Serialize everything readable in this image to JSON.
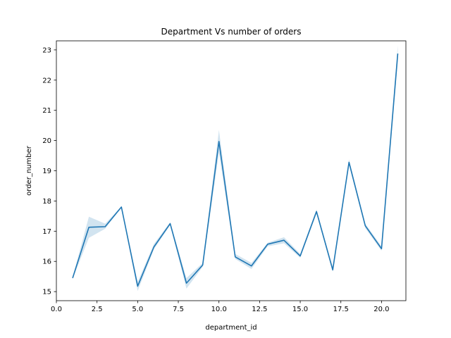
{
  "chart_data": {
    "type": "line",
    "title": "Department Vs number of orders",
    "xlabel": "department_id",
    "ylabel": "order_number",
    "xlim": [
      0,
      21.5
    ],
    "ylim": [
      14.7,
      23.3
    ],
    "x_ticks": [
      0,
      2.5,
      5,
      7.5,
      10,
      12.5,
      15,
      17.5,
      20
    ],
    "x_tick_labels": [
      "0.0",
      "2.5",
      "5.0",
      "7.5",
      "10.0",
      "12.5",
      "15.0",
      "17.5",
      "20.0"
    ],
    "y_ticks": [
      15,
      16,
      17,
      18,
      19,
      20,
      21,
      22,
      23
    ],
    "y_tick_labels": [
      "15",
      "16",
      "17",
      "18",
      "19",
      "20",
      "21",
      "22",
      "23"
    ],
    "grid": false,
    "line_color": "#1f77b4",
    "band_color": "#1f77b4",
    "series": [
      {
        "x": [
          1,
          2,
          3,
          4,
          5,
          6,
          7,
          8,
          9,
          10,
          11,
          12,
          13,
          14,
          15,
          16,
          17,
          18,
          19,
          20,
          21
        ],
        "values": [
          15.45,
          17.13,
          17.15,
          17.8,
          15.18,
          16.48,
          17.25,
          15.28,
          15.88,
          19.97,
          16.15,
          15.85,
          16.57,
          16.7,
          16.18,
          17.65,
          15.72,
          19.28,
          17.18,
          16.42,
          22.88
        ],
        "ci_low": [
          15.42,
          16.78,
          17.08,
          17.78,
          15.02,
          16.4,
          17.2,
          15.1,
          15.82,
          19.6,
          16.08,
          15.75,
          16.5,
          16.6,
          16.12,
          17.58,
          15.65,
          19.2,
          17.1,
          16.35,
          22.62
        ],
        "ci_high": [
          15.48,
          17.48,
          17.25,
          17.82,
          15.32,
          16.58,
          17.3,
          15.45,
          15.95,
          20.35,
          16.25,
          15.95,
          16.62,
          16.8,
          16.25,
          17.72,
          15.8,
          19.38,
          17.25,
          16.5,
          23.15
        ]
      }
    ]
  }
}
